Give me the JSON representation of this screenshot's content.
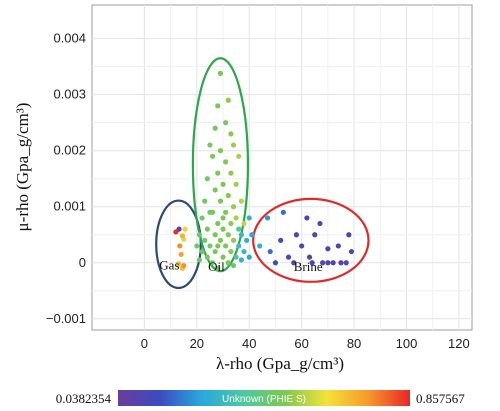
{
  "chart_data": {
    "type": "scatter",
    "xlabel": "λ-rho (Gpa_g/cm³)",
    "ylabel": "μ-rho (Gpa_g/cm³)",
    "xlim": [
      -20,
      125
    ],
    "ylim": [
      -0.0012,
      0.0046
    ],
    "xticks": [
      0,
      20,
      40,
      60,
      80,
      100,
      120
    ],
    "xtick_labels": [
      "0",
      "20",
      "40",
      "60",
      "80",
      "100",
      "120"
    ],
    "yticks": [
      -0.001,
      0,
      0.001,
      0.002,
      0.003,
      0.004
    ],
    "ytick_labels": [
      "−0.001",
      "0",
      "0.001",
      "0.002",
      "0.003",
      "0.004"
    ],
    "grid": true,
    "colorbar": {
      "title": "Unknown (PHIE S)",
      "min_label": "0.0382354",
      "max_label": "0.857567",
      "min": 0.0382354,
      "max": 0.857567,
      "colors": [
        "#6a3d9a",
        "#3b4cc0",
        "#2aa7de",
        "#4cc9a0",
        "#7ec850",
        "#f3e23a",
        "#f59a2a",
        "#e8262a"
      ]
    },
    "groups": [
      {
        "label": "Gas",
        "ellipse": {
          "cx": 13,
          "cy": 0.00033,
          "rx": 8.5,
          "ry": 0.00078
        },
        "color": "#2b4a7a"
      },
      {
        "label": "Oil",
        "ellipse": {
          "cx": 29,
          "cy": 0.00175,
          "rx": 10.5,
          "ry": 0.0019
        },
        "color": "#2aa84a"
      },
      {
        "label": "Brine",
        "ellipse": {
          "cx": 63.5,
          "cy": 0.0004,
          "rx": 22,
          "ry": 0.00074
        },
        "color": "#e02a2a"
      }
    ],
    "points": [
      {
        "x": 12,
        "y": 0.00055,
        "v": 0.85
      },
      {
        "x": 13.5,
        "y": 0.0003,
        "v": 0.75
      },
      {
        "x": 14,
        "y": 0.00015,
        "v": 0.72
      },
      {
        "x": 13,
        "y": -2e-05,
        "v": 0.7
      },
      {
        "x": 14.5,
        "y": -0.0001,
        "v": 0.68
      },
      {
        "x": 15,
        "y": 0.00042,
        "v": 0.6
      },
      {
        "x": 15.5,
        "y": 0.0006,
        "v": 0.65
      },
      {
        "x": 13.2,
        "y": 0.0006,
        "v": 0.05
      },
      {
        "x": 14.5,
        "y": 0.00048,
        "v": 0.7
      },
      {
        "x": 15,
        "y": -5e-05,
        "v": 0.75
      },
      {
        "x": 29,
        "y": 0.00338,
        "v": 0.5
      },
      {
        "x": 28,
        "y": 0.0028,
        "v": 0.5
      },
      {
        "x": 32,
        "y": 0.0029,
        "v": 0.52
      },
      {
        "x": 27,
        "y": 0.0024,
        "v": 0.49
      },
      {
        "x": 31,
        "y": 0.0025,
        "v": 0.5
      },
      {
        "x": 33,
        "y": 0.0023,
        "v": 0.52
      },
      {
        "x": 25,
        "y": 0.0021,
        "v": 0.48
      },
      {
        "x": 29,
        "y": 0.002,
        "v": 0.5
      },
      {
        "x": 34,
        "y": 0.0021,
        "v": 0.53
      },
      {
        "x": 26,
        "y": 0.0019,
        "v": 0.49
      },
      {
        "x": 31,
        "y": 0.0018,
        "v": 0.51
      },
      {
        "x": 36,
        "y": 0.0019,
        "v": 0.55
      },
      {
        "x": 28,
        "y": 0.0016,
        "v": 0.5
      },
      {
        "x": 33,
        "y": 0.0016,
        "v": 0.52
      },
      {
        "x": 24,
        "y": 0.0015,
        "v": 0.47
      },
      {
        "x": 30,
        "y": 0.0014,
        "v": 0.5
      },
      {
        "x": 35,
        "y": 0.0014,
        "v": 0.54
      },
      {
        "x": 27,
        "y": 0.0013,
        "v": 0.49
      },
      {
        "x": 32,
        "y": 0.0012,
        "v": 0.51
      },
      {
        "x": 23,
        "y": 0.0011,
        "v": 0.47
      },
      {
        "x": 29,
        "y": 0.0011,
        "v": 0.5
      },
      {
        "x": 34,
        "y": 0.001,
        "v": 0.53
      },
      {
        "x": 37,
        "y": 0.0011,
        "v": 0.56
      },
      {
        "x": 26,
        "y": 0.0009,
        "v": 0.48
      },
      {
        "x": 31,
        "y": 0.0009,
        "v": 0.5
      },
      {
        "x": 35,
        "y": 0.0008,
        "v": 0.55
      },
      {
        "x": 22,
        "y": 0.0008,
        "v": 0.47
      },
      {
        "x": 28,
        "y": 0.0007,
        "v": 0.49
      },
      {
        "x": 33,
        "y": 0.0007,
        "v": 0.52
      },
      {
        "x": 38,
        "y": 0.0007,
        "v": 0.57
      },
      {
        "x": 24,
        "y": 0.0006,
        "v": 0.48
      },
      {
        "x": 30,
        "y": 0.0006,
        "v": 0.5
      },
      {
        "x": 36,
        "y": 0.0006,
        "v": 0.4
      },
      {
        "x": 21,
        "y": 0.0005,
        "v": 0.46
      },
      {
        "x": 27,
        "y": 0.0005,
        "v": 0.49
      },
      {
        "x": 32,
        "y": 0.0005,
        "v": 0.51
      },
      {
        "x": 37,
        "y": 0.0005,
        "v": 0.33
      },
      {
        "x": 23,
        "y": 0.0004,
        "v": 0.47
      },
      {
        "x": 29,
        "y": 0.0004,
        "v": 0.5
      },
      {
        "x": 34,
        "y": 0.0004,
        "v": 0.52
      },
      {
        "x": 39,
        "y": 0.0004,
        "v": 0.3
      },
      {
        "x": 20,
        "y": 0.0003,
        "v": 0.46
      },
      {
        "x": 25,
        "y": 0.0003,
        "v": 0.48
      },
      {
        "x": 31,
        "y": 0.0003,
        "v": 0.5
      },
      {
        "x": 36,
        "y": 0.0003,
        "v": 0.35
      },
      {
        "x": 22,
        "y": 0.0002,
        "v": 0.47
      },
      {
        "x": 27,
        "y": 0.0002,
        "v": 0.49
      },
      {
        "x": 33,
        "y": 0.0002,
        "v": 0.51
      },
      {
        "x": 38,
        "y": 0.0002,
        "v": 0.32
      },
      {
        "x": 24,
        "y": 0.0001,
        "v": 0.48
      },
      {
        "x": 30,
        "y": 0.0001,
        "v": 0.5
      },
      {
        "x": 35,
        "y": 0.0001,
        "v": 0.4
      },
      {
        "x": 21,
        "y": 5e-05,
        "v": 0.46
      },
      {
        "x": 26,
        "y": 0.0,
        "v": 0.48
      },
      {
        "x": 32,
        "y": 0.0,
        "v": 0.5
      },
      {
        "x": 37,
        "y": 5e-05,
        "v": 0.3
      },
      {
        "x": 28,
        "y": -0.0001,
        "v": 0.49
      },
      {
        "x": 34,
        "y": -5e-05,
        "v": 0.45
      },
      {
        "x": 40,
        "y": 0.0008,
        "v": 0.3
      },
      {
        "x": 41,
        "y": 0.0005,
        "v": 0.28
      },
      {
        "x": 40,
        "y": 0.0001,
        "v": 0.27
      },
      {
        "x": 25,
        "y": 0.0009,
        "v": 0.48
      },
      {
        "x": 30,
        "y": 0.0008,
        "v": 0.5
      },
      {
        "x": 28,
        "y": 0.0003,
        "v": 0.5
      },
      {
        "x": 47,
        "y": 0.0008,
        "v": 0.25
      },
      {
        "x": 48,
        "y": 0.0002,
        "v": 0.2
      },
      {
        "x": 52,
        "y": 0.0004,
        "v": 0.15
      },
      {
        "x": 55,
        "y": 0.0001,
        "v": 0.12
      },
      {
        "x": 58,
        "y": 0.0005,
        "v": 0.12
      },
      {
        "x": 60,
        "y": 0.0003,
        "v": 0.1
      },
      {
        "x": 62,
        "y": 0.0008,
        "v": 0.15
      },
      {
        "x": 63,
        "y": 0.0001,
        "v": 0.1
      },
      {
        "x": 65,
        "y": 0.0005,
        "v": 0.12
      },
      {
        "x": 67,
        "y": 0.0007,
        "v": 0.13
      },
      {
        "x": 68,
        "y": 0.0,
        "v": 0.1
      },
      {
        "x": 70,
        "y": 0.00025,
        "v": 0.11
      },
      {
        "x": 72,
        "y": 0.0,
        "v": 0.1
      },
      {
        "x": 74,
        "y": 0.0003,
        "v": 0.12
      },
      {
        "x": 75,
        "y": 0.0,
        "v": 0.1
      },
      {
        "x": 77,
        "y": 0.0,
        "v": 0.1
      },
      {
        "x": 78,
        "y": 0.0005,
        "v": 0.12
      },
      {
        "x": 79,
        "y": 0.0002,
        "v": 0.11
      },
      {
        "x": 50,
        "y": 0.0,
        "v": 0.14
      },
      {
        "x": 57,
        "y": 0.0,
        "v": 0.12
      },
      {
        "x": 64,
        "y": 0.0,
        "v": 0.1
      },
      {
        "x": 70,
        "y": 0.0,
        "v": 0.1
      },
      {
        "x": 53,
        "y": 0.0009,
        "v": 0.2
      },
      {
        "x": 44,
        "y": 0.0003,
        "v": 0.3
      }
    ]
  }
}
